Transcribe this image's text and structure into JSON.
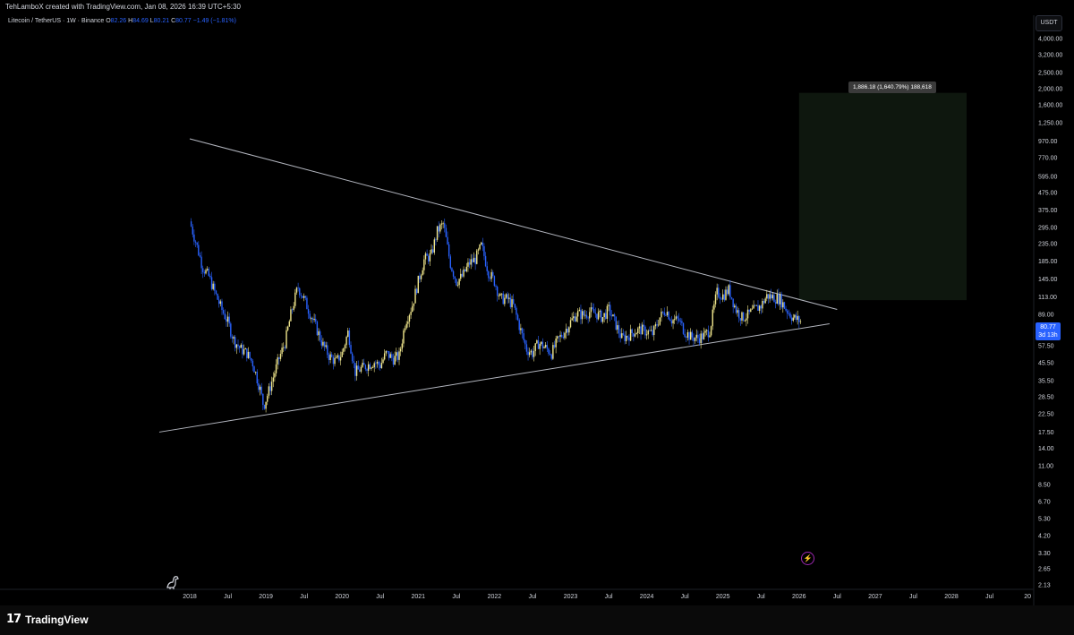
{
  "header": {
    "credit": "TehLamboX created with TradingView.com, Jan 08, 2026 16:39 UTC+5:30"
  },
  "legend": {
    "symbol": "Litecoin / TetherUS · 1W · Binance",
    "open_label": "O",
    "open": "82.26",
    "high_label": "H",
    "high": "84.69",
    "low_label": "L",
    "low": "80.21",
    "close_label": "C",
    "close": "80.77",
    "change": "−1.49 (−1.81%)"
  },
  "price_axis": {
    "currency": "USDT",
    "current_price": "80.77",
    "countdown": "3d 13h"
  },
  "measure_tool": {
    "label": "1,886.18 (1,640.79%) 188,618",
    "fill_color": "#0f1a10"
  },
  "footer": {
    "brand": "TradingView"
  },
  "colors": {
    "background": "#000000",
    "candle_up": "#f0e68c",
    "candle_down": "#2962ff",
    "trendline": "#b2b5be",
    "accent": "#2962ff"
  },
  "icons": {
    "dino": "dino-icon",
    "bolt": "lightning-icon",
    "logo": "tradingview-logo-icon"
  },
  "chart_data": {
    "type": "line",
    "title": "",
    "xlabel": "",
    "ylabel": "",
    "y_scale": "log",
    "ylim": [
      2.0,
      5500
    ],
    "xlim": [
      2017.9,
      2029.1
    ],
    "y_ticks": [
      "4,000.00",
      "3,200.00",
      "2,500.00",
      "2,000.00",
      "1,600.00",
      "1,250.00",
      "970.00",
      "770.00",
      "595.00",
      "475.00",
      "375.00",
      "295.00",
      "235.00",
      "185.00",
      "145.00",
      "113.00",
      "89.00",
      "57.50",
      "45.50",
      "35.50",
      "28.50",
      "22.50",
      "17.50",
      "14.00",
      "11.00",
      "8.50",
      "6.70",
      "5.30",
      "4.20",
      "3.30",
      "2.65",
      "2.13"
    ],
    "x_ticks": [
      "2018",
      "Jul",
      "2019",
      "Jul",
      "2020",
      "Jul",
      "2021",
      "Jul",
      "2022",
      "Jul",
      "2023",
      "Jul",
      "2024",
      "Jul",
      "2025",
      "Jul",
      "2026",
      "Jul",
      "2027",
      "Jul",
      "2028",
      "Jul",
      "20"
    ],
    "series": [
      {
        "values": [
          [
            2018.0,
            320
          ],
          [
            2018.08,
            240
          ],
          [
            2018.17,
            170
          ],
          [
            2018.25,
            150
          ],
          [
            2018.33,
            120
          ],
          [
            2018.42,
            95
          ],
          [
            2018.5,
            80
          ],
          [
            2018.58,
            62
          ],
          [
            2018.67,
            55
          ],
          [
            2018.75,
            52
          ],
          [
            2018.83,
            45
          ],
          [
            2018.92,
            32
          ],
          [
            2018.97,
            25
          ],
          [
            2019.05,
            32
          ],
          [
            2019.17,
            48
          ],
          [
            2019.25,
            60
          ],
          [
            2019.33,
            90
          ],
          [
            2019.42,
            130
          ],
          [
            2019.5,
            110
          ],
          [
            2019.58,
            90
          ],
          [
            2019.67,
            72
          ],
          [
            2019.75,
            58
          ],
          [
            2019.83,
            50
          ],
          [
            2019.92,
            46
          ],
          [
            2020.0,
            52
          ],
          [
            2020.08,
            70
          ],
          [
            2020.17,
            40
          ],
          [
            2020.25,
            42
          ],
          [
            2020.33,
            44
          ],
          [
            2020.42,
            46
          ],
          [
            2020.5,
            44
          ],
          [
            2020.58,
            52
          ],
          [
            2020.67,
            48
          ],
          [
            2020.75,
            50
          ],
          [
            2020.83,
            80
          ],
          [
            2020.92,
            100
          ],
          [
            2021.0,
            140
          ],
          [
            2021.08,
            190
          ],
          [
            2021.17,
            200
          ],
          [
            2021.25,
            280
          ],
          [
            2021.33,
            310
          ],
          [
            2021.42,
            180
          ],
          [
            2021.5,
            140
          ],
          [
            2021.58,
            150
          ],
          [
            2021.67,
            180
          ],
          [
            2021.75,
            190
          ],
          [
            2021.83,
            230
          ],
          [
            2021.92,
            160
          ],
          [
            2022.0,
            140
          ],
          [
            2022.08,
            110
          ],
          [
            2022.17,
            110
          ],
          [
            2022.25,
            100
          ],
          [
            2022.33,
            75
          ],
          [
            2022.42,
            55
          ],
          [
            2022.5,
            52
          ],
          [
            2022.58,
            60
          ],
          [
            2022.67,
            56
          ],
          [
            2022.75,
            52
          ],
          [
            2022.83,
            62
          ],
          [
            2022.92,
            70
          ],
          [
            2023.0,
            80
          ],
          [
            2023.08,
            90
          ],
          [
            2023.17,
            88
          ],
          [
            2023.25,
            92
          ],
          [
            2023.33,
            90
          ],
          [
            2023.42,
            85
          ],
          [
            2023.5,
            95
          ],
          [
            2023.58,
            80
          ],
          [
            2023.67,
            64
          ],
          [
            2023.75,
            66
          ],
          [
            2023.83,
            70
          ],
          [
            2023.92,
            72
          ],
          [
            2024.0,
            70
          ],
          [
            2024.08,
            68
          ],
          [
            2024.17,
            85
          ],
          [
            2024.25,
            95
          ],
          [
            2024.33,
            82
          ],
          [
            2024.42,
            82
          ],
          [
            2024.5,
            70
          ],
          [
            2024.58,
            65
          ],
          [
            2024.67,
            64
          ],
          [
            2024.75,
            66
          ],
          [
            2024.83,
            72
          ],
          [
            2024.92,
            120
          ],
          [
            2025.0,
            115
          ],
          [
            2025.08,
            125
          ],
          [
            2025.17,
            95
          ],
          [
            2025.25,
            85
          ],
          [
            2025.33,
            88
          ],
          [
            2025.42,
            95
          ],
          [
            2025.5,
            100
          ],
          [
            2025.58,
            115
          ],
          [
            2025.67,
            112
          ],
          [
            2025.75,
            110
          ],
          [
            2025.83,
            95
          ],
          [
            2025.92,
            85
          ],
          [
            2026.02,
            80.77
          ]
        ]
      }
    ],
    "trendlines": [
      {
        "name": "upper",
        "from": [
          2018.0,
          1000
        ],
        "to": [
          2026.5,
          95
        ]
      },
      {
        "name": "lower",
        "from": [
          2017.6,
          17.5
        ],
        "to": [
          2026.4,
          78
        ]
      }
    ],
    "target_box": {
      "x": [
        2026.0,
        2028.2
      ],
      "y": [
        108,
        1886.18
      ]
    },
    "grid": false,
    "legend": "none"
  }
}
